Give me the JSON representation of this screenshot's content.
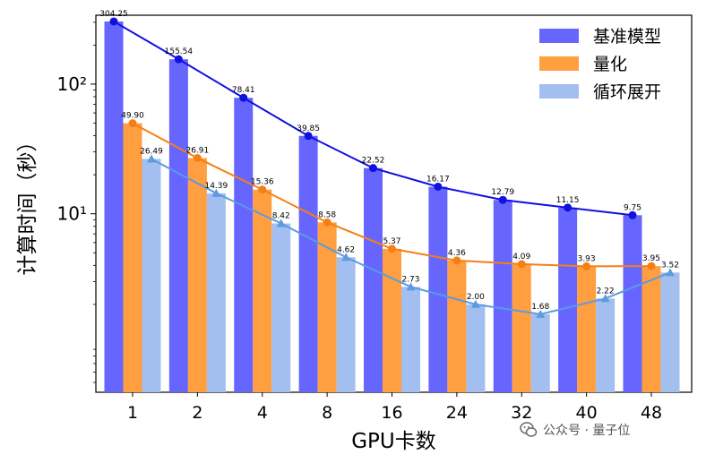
{
  "chart_data": {
    "type": "bar",
    "title": "",
    "xlabel": "GPU卡数",
    "ylabel": "计算时间（秒）",
    "yscale": "log",
    "ylim": [
      0.42,
      340
    ],
    "grid": false,
    "legend_position": "top-right",
    "categories": [
      "1",
      "2",
      "4",
      "8",
      "16",
      "24",
      "32",
      "40",
      "48"
    ],
    "y_ticks": [
      {
        "value": 10,
        "label": "10¹"
      },
      {
        "value": 100,
        "label": "10²"
      }
    ],
    "series": [
      {
        "name": "基准模型",
        "color": "#6666FF",
        "line_color": "#1010E0",
        "marker": "circle",
        "values": [
          304.25,
          155.54,
          78.41,
          39.85,
          22.52,
          16.17,
          12.79,
          11.15,
          9.75
        ],
        "labels": [
          "304.25",
          "155.54",
          "78.41",
          "39.85",
          "22.52",
          "16.17",
          "12.79",
          "11.15",
          "9.75"
        ]
      },
      {
        "name": "量化",
        "color": "#FF9F40",
        "line_color": "#F57F17",
        "marker": "circle",
        "values": [
          49.9,
          26.91,
          15.36,
          8.58,
          5.37,
          4.36,
          4.09,
          3.93,
          3.95
        ],
        "labels": [
          "49.90",
          "26.91",
          "15.36",
          "8.58",
          "5.37",
          "4.36",
          "4.09",
          "3.93",
          "3.95"
        ]
      },
      {
        "name": "循环展开",
        "color": "#A3BFF0",
        "line_color": "#5B9BE0",
        "marker": "triangle",
        "values": [
          26.49,
          14.39,
          8.42,
          4.62,
          2.73,
          2.0,
          1.68,
          2.22,
          3.52
        ],
        "labels": [
          "26.49",
          "14.39",
          "8.42",
          "4.62",
          "2.73",
          "2.00",
          "1.68",
          "2.22",
          "3.52"
        ]
      }
    ]
  },
  "watermark": {
    "text": "公众号 · 量子位",
    "icon": "wechat-icon"
  }
}
